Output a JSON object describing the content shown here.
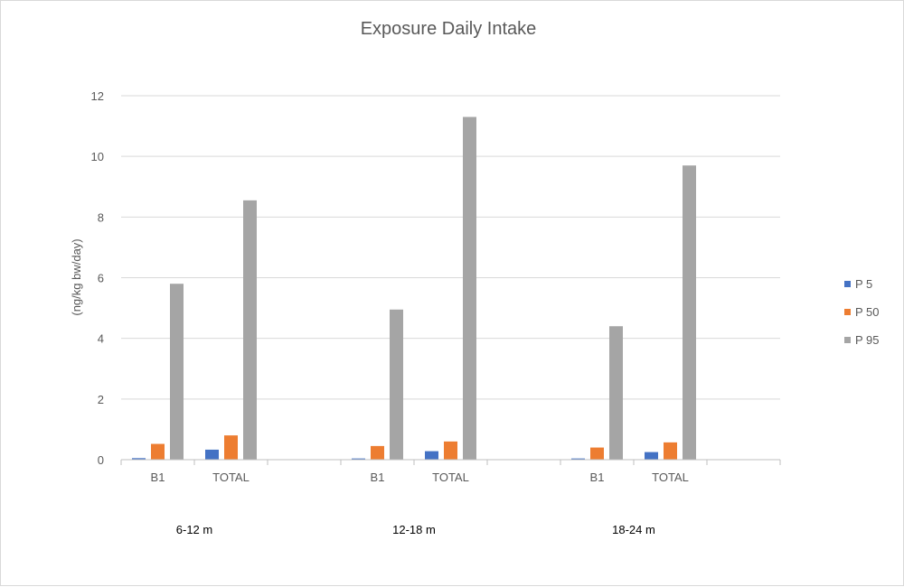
{
  "chart_data": {
    "type": "bar",
    "title": "Exposure Daily Intake",
    "ylabel": "(ng/kg bw/day)",
    "xlabel": "",
    "ylim": [
      0,
      12
    ],
    "yticks": [
      0,
      2,
      4,
      6,
      8,
      10,
      12
    ],
    "grid": true,
    "legend_position": "right",
    "groups": [
      {
        "label": "6-12 m",
        "categories": [
          "B1",
          "TOTAL"
        ]
      },
      {
        "label": "12-18 m",
        "categories": [
          "B1",
          "TOTAL"
        ]
      },
      {
        "label": "18-24 m",
        "categories": [
          "B1",
          "TOTAL"
        ]
      }
    ],
    "series": [
      {
        "name": "P 5",
        "color": "#4472c4",
        "values": [
          0.05,
          0.33,
          0.04,
          0.28,
          0.04,
          0.25
        ]
      },
      {
        "name": "P 50",
        "color": "#ed7d31",
        "values": [
          0.52,
          0.8,
          0.45,
          0.6,
          0.4,
          0.57
        ]
      },
      {
        "name": "P 95",
        "color": "#a5a5a5",
        "values": [
          5.8,
          8.55,
          4.95,
          11.3,
          4.4,
          9.7
        ]
      }
    ]
  }
}
